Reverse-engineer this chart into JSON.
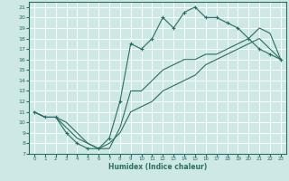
{
  "xlabel": "Humidex (Indice chaleur)",
  "xlim": [
    -0.5,
    23.5
  ],
  "ylim": [
    7,
    21.5
  ],
  "xticks": [
    0,
    1,
    2,
    3,
    4,
    5,
    6,
    7,
    8,
    9,
    10,
    11,
    12,
    13,
    14,
    15,
    16,
    17,
    18,
    19,
    20,
    21,
    22,
    23
  ],
  "yticks": [
    7,
    8,
    9,
    10,
    11,
    12,
    13,
    14,
    15,
    16,
    17,
    18,
    19,
    20,
    21
  ],
  "bg_color": "#cde8e5",
  "grid_color": "#ffffff",
  "line_color": "#2a6e65",
  "line1_x": [
    0,
    1,
    2,
    3,
    4,
    5,
    6,
    7,
    8,
    9,
    10,
    11,
    12,
    13,
    14,
    15,
    16,
    17,
    18,
    19,
    20,
    21,
    22,
    23
  ],
  "line1_y": [
    11,
    10.5,
    10.5,
    9,
    8,
    7.5,
    7.5,
    8.5,
    12,
    17.5,
    17,
    18,
    20,
    19,
    20.5,
    21,
    20,
    20,
    19.5,
    19,
    18,
    17,
    16.5,
    16
  ],
  "line2_x": [
    0,
    1,
    2,
    3,
    4,
    5,
    6,
    7,
    8,
    9,
    10,
    11,
    12,
    13,
    14,
    15,
    16,
    17,
    18,
    19,
    20,
    21,
    22,
    23
  ],
  "line2_y": [
    11,
    10.5,
    10.5,
    10,
    9,
    8,
    7.5,
    8,
    9,
    11,
    11.5,
    12,
    13,
    13.5,
    14,
    14.5,
    15.5,
    16,
    16.5,
    17,
    17.5,
    18,
    17,
    16
  ],
  "line3_x": [
    0,
    1,
    2,
    3,
    4,
    5,
    6,
    7,
    8,
    9,
    10,
    11,
    12,
    13,
    14,
    15,
    16,
    17,
    18,
    19,
    20,
    21,
    22,
    23
  ],
  "line3_y": [
    11,
    10.5,
    10.5,
    9.5,
    8.5,
    8,
    7.5,
    7.5,
    9.5,
    13,
    13,
    14,
    15,
    15.5,
    16,
    16,
    16.5,
    16.5,
    17,
    17.5,
    18,
    19,
    18.5,
    16
  ]
}
